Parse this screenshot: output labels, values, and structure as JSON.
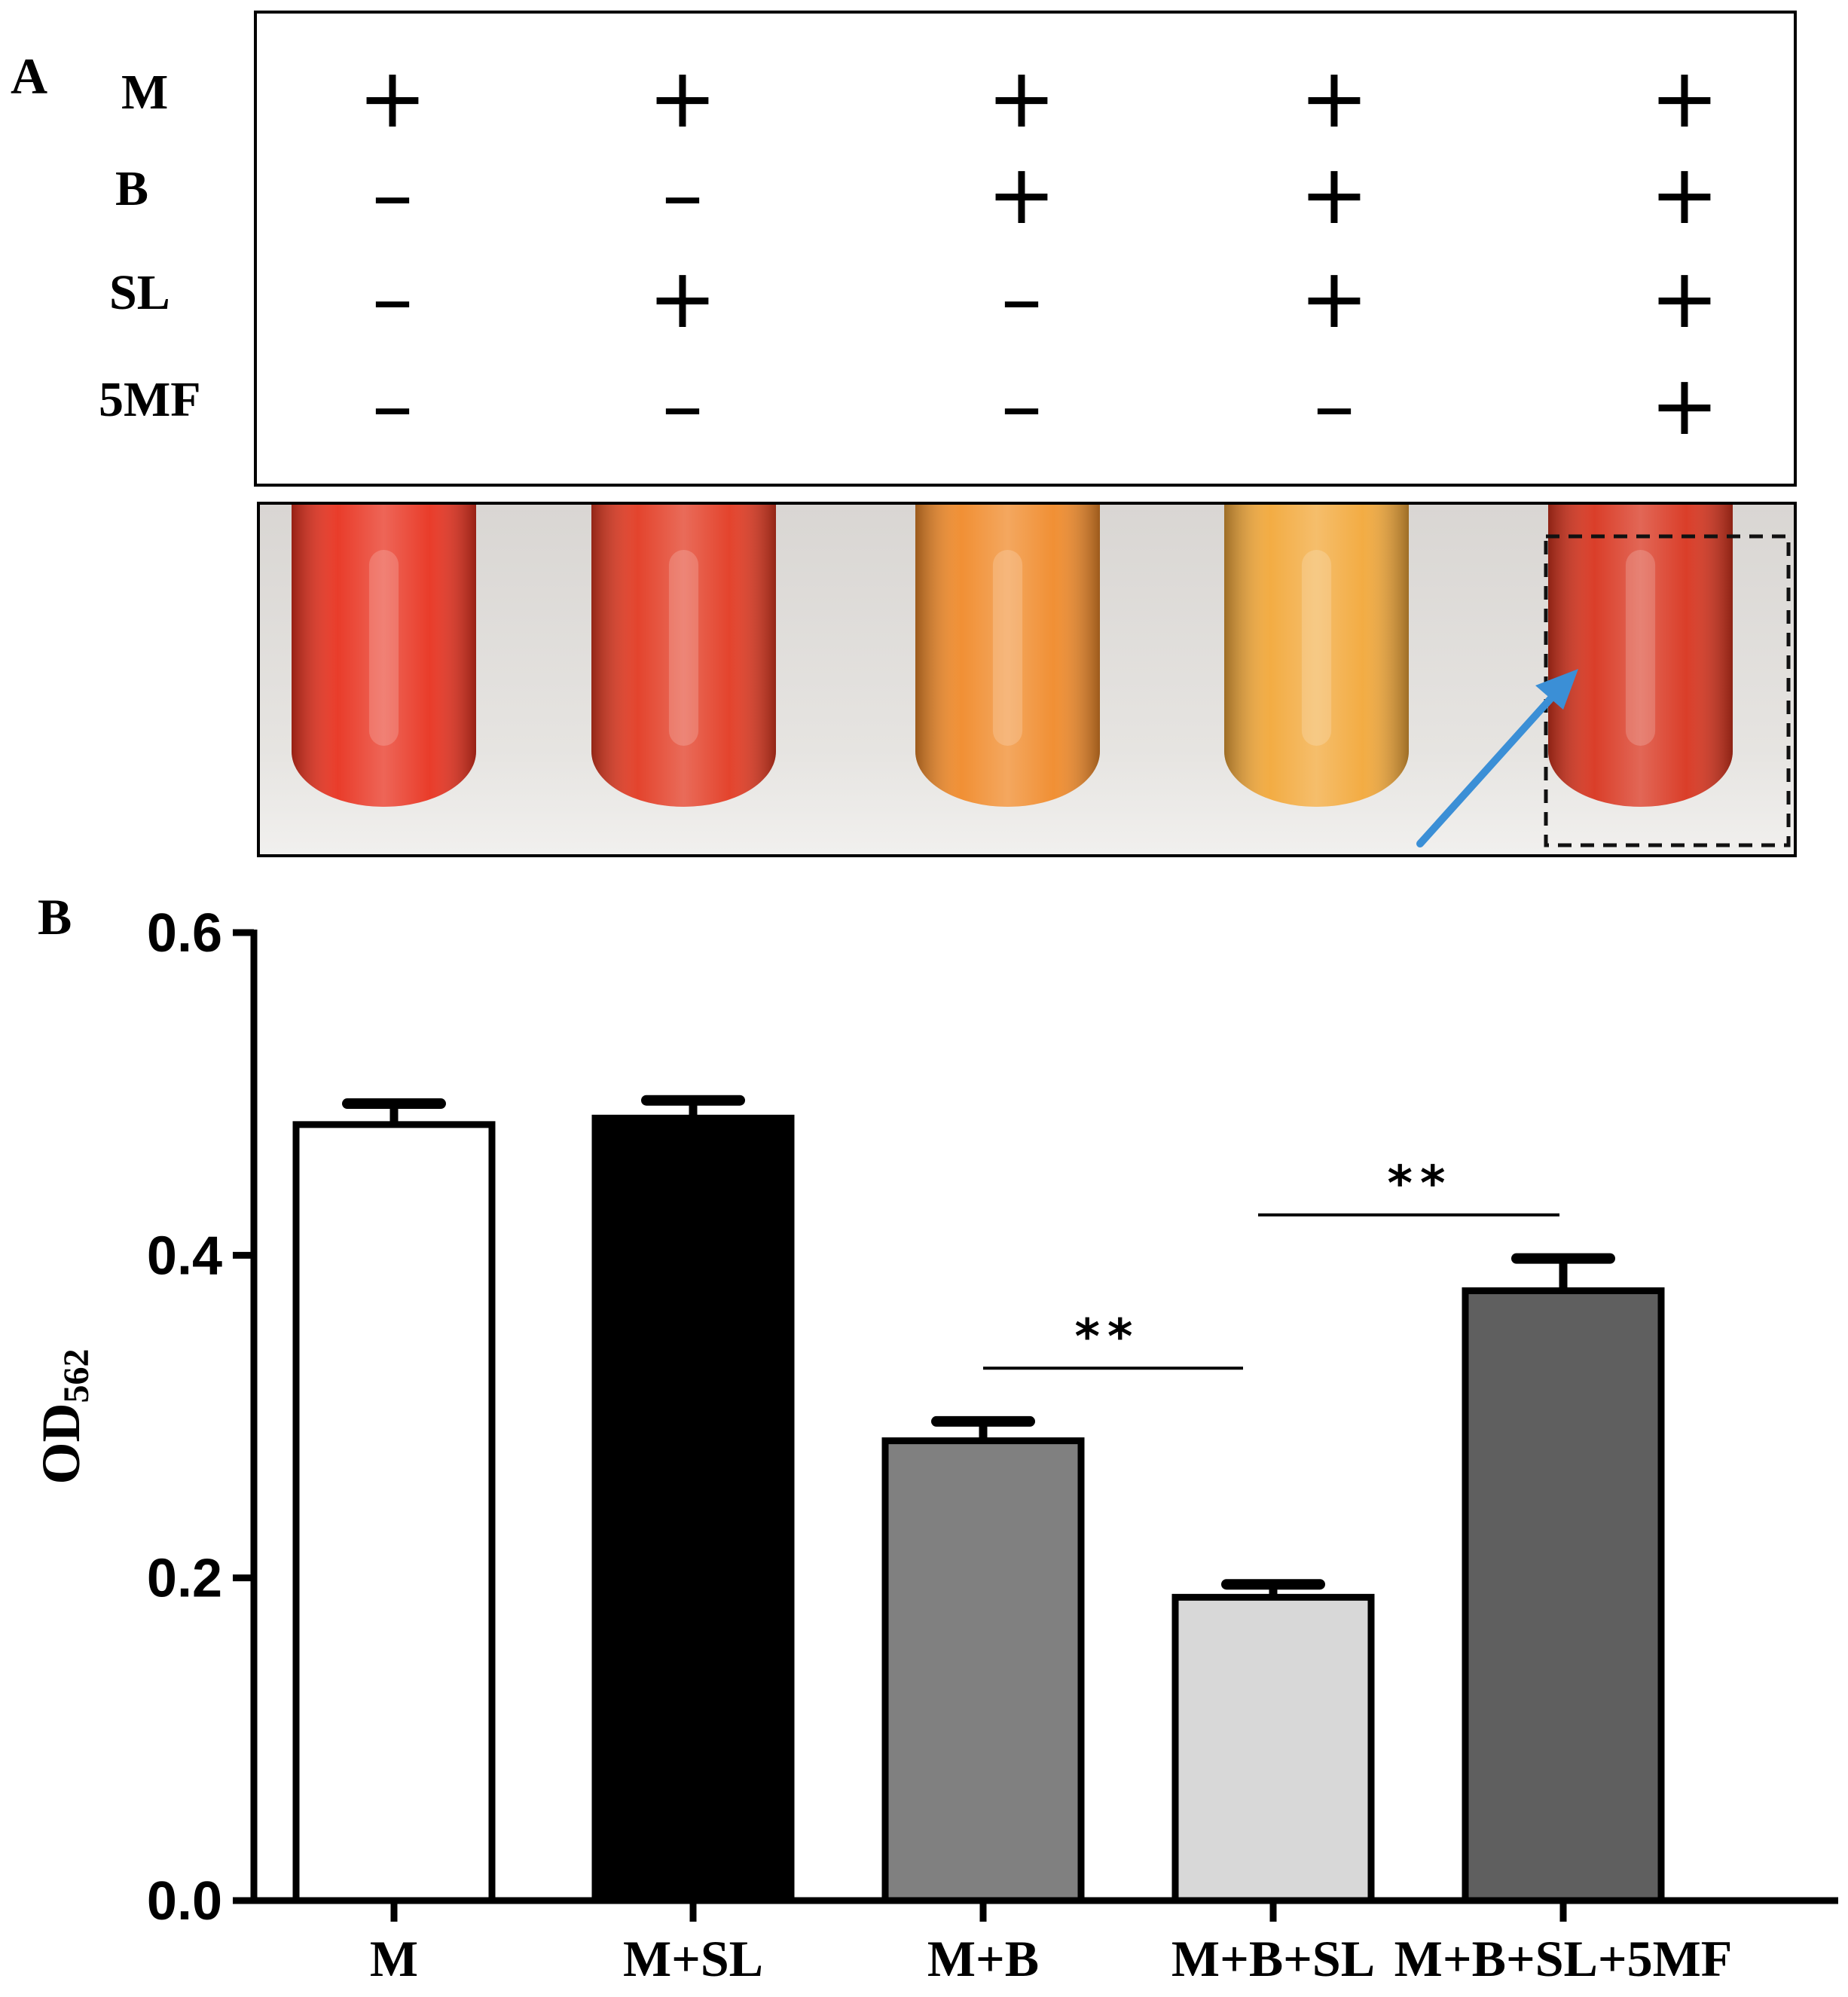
{
  "panel_a": {
    "label": "A",
    "row_labels": [
      "M",
      "B",
      "SL",
      "5MF"
    ],
    "columns": [
      [
        "+",
        "-",
        "-",
        "-"
      ],
      [
        "+",
        "-",
        "+",
        "-"
      ],
      [
        "+",
        "+",
        "-",
        "-"
      ],
      [
        "+",
        "+",
        "+",
        "-"
      ],
      [
        "+",
        "+",
        "+",
        "+"
      ]
    ],
    "tube_colors": [
      "#e8321f",
      "#e23a22",
      "#f08a2a",
      "#f2a83a",
      "#d8341e"
    ],
    "highlight_color": "#111111",
    "arrow_color": "#3b8fd6"
  },
  "panel_b": {
    "label": "B"
  },
  "chart_data": {
    "type": "bar",
    "title": "",
    "xlabel": "",
    "ylabel": "OD562",
    "ylabel_main": "OD",
    "ylabel_sub": "562",
    "ylim": [
      0.0,
      0.6
    ],
    "yticks": [
      "0.0",
      "0.2",
      "0.4",
      "0.6"
    ],
    "categories": [
      "M",
      "M+SL",
      "M+B",
      "M+B+SL",
      "M+B+SL+5MF"
    ],
    "values": [
      0.481,
      0.485,
      0.285,
      0.188,
      0.378
    ],
    "errors": [
      0.013,
      0.011,
      0.012,
      0.008,
      0.02
    ],
    "bar_colors": [
      "#ffffff",
      "#000000",
      "#808080",
      "#d8d8d8",
      "#5f5f5f"
    ],
    "significance": [
      {
        "from": 2,
        "to": 3,
        "y": 0.33,
        "label": "**"
      },
      {
        "from": 3,
        "to": 4,
        "y": 0.425,
        "label": "**"
      }
    ]
  }
}
